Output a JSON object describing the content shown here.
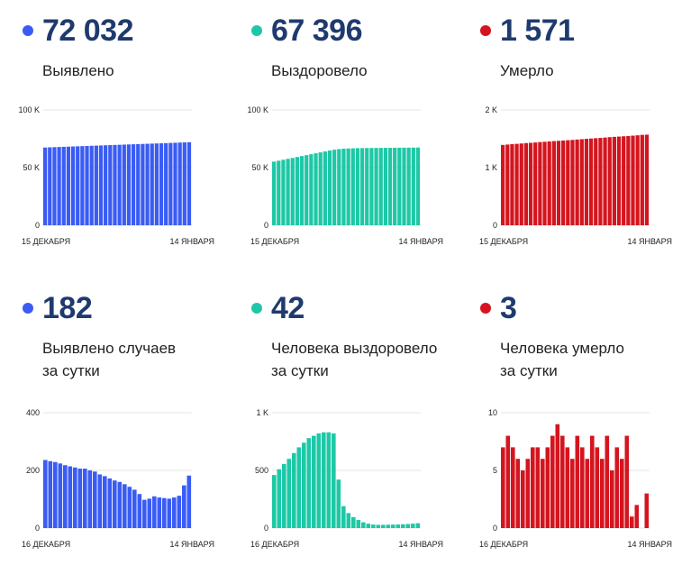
{
  "colors": {
    "blue": "#3a5cf4",
    "teal": "#1ec8a6",
    "red": "#d4151f"
  },
  "panels": [
    {
      "value": "72 032",
      "label_lines": [
        "Выявлено"
      ],
      "color": "blue"
    },
    {
      "value": "67 396",
      "label_lines": [
        "Выздоровело"
      ],
      "color": "teal"
    },
    {
      "value": "1 571",
      "label_lines": [
        "Умерло"
      ],
      "color": "red"
    },
    {
      "value": "182",
      "label_lines": [
        "Выявлено случаев",
        "за сутки"
      ],
      "color": "blue"
    },
    {
      "value": "42",
      "label_lines": [
        "Человека выздоровело",
        "за сутки"
      ],
      "color": "teal"
    },
    {
      "value": "3",
      "label_lines": [
        "Человека умерло",
        "за сутки"
      ],
      "color": "red"
    }
  ],
  "chart_data": [
    {
      "type": "bar",
      "color": "blue",
      "y_ticks": [
        "100 K",
        "50 K",
        "0"
      ],
      "ylim": [
        0,
        100000
      ],
      "x_start": "15 ДЕКАБРЯ",
      "x_end": "14 ЯНВАРЯ",
      "grid": true,
      "values": [
        67400,
        67570,
        67730,
        67880,
        68020,
        68170,
        68320,
        68470,
        68610,
        68760,
        68910,
        69060,
        69200,
        69350,
        69500,
        69650,
        69790,
        69940,
        70090,
        70240,
        70380,
        70520,
        70670,
        70800,
        70940,
        71090,
        71240,
        71400,
        71560,
        71720,
        71850,
        72032
      ]
    },
    {
      "type": "bar",
      "color": "teal",
      "y_ticks": [
        "100 K",
        "50 K",
        "0"
      ],
      "ylim": [
        0,
        100000
      ],
      "x_start": "15 ДЕКАБРЯ",
      "x_end": "14 ЯНВАРЯ",
      "grid": true,
      "values": [
        55200,
        56000,
        56800,
        57600,
        58400,
        59200,
        60000,
        60800,
        61600,
        62400,
        63200,
        64000,
        64800,
        65500,
        66000,
        66400,
        66600,
        66750,
        66850,
        66900,
        66950,
        67000,
        67050,
        67100,
        67130,
        67160,
        67200,
        67230,
        67270,
        67310,
        67354,
        67396
      ]
    },
    {
      "type": "bar",
      "color": "red",
      "y_ticks": [
        "2 K",
        "1 K",
        "0"
      ],
      "ylim": [
        0,
        2000
      ],
      "x_start": "15 ДЕКАБРЯ",
      "x_end": "14 ЯНВАРЯ",
      "grid": true,
      "values": [
        1393,
        1400,
        1407,
        1412,
        1418,
        1425,
        1430,
        1436,
        1443,
        1448,
        1454,
        1460,
        1465,
        1470,
        1475,
        1480,
        1487,
        1493,
        1499,
        1504,
        1510,
        1515,
        1521,
        1528,
        1533,
        1538,
        1543,
        1548,
        1554,
        1560,
        1568,
        1571
      ]
    },
    {
      "type": "bar",
      "color": "blue",
      "y_ticks": [
        "400",
        "200",
        "0"
      ],
      "ylim": [
        0,
        400
      ],
      "x_start": "16 ДЕКАБРЯ",
      "x_end": "14 ЯНВАРЯ",
      "grid": true,
      "values": [
        236,
        232,
        229,
        224,
        218,
        214,
        210,
        206,
        206,
        200,
        196,
        186,
        180,
        172,
        165,
        160,
        152,
        143,
        133,
        118,
        98,
        102,
        110,
        106,
        104,
        102,
        106,
        112,
        148,
        182
      ]
    },
    {
      "type": "bar",
      "color": "teal",
      "y_ticks": [
        "1 K",
        "500",
        "0"
      ],
      "ylim": [
        0,
        1000
      ],
      "x_start": "16 ДЕКАБРЯ",
      "x_end": "14 ЯНВАРЯ",
      "grid": true,
      "values": [
        460,
        510,
        555,
        600,
        650,
        700,
        740,
        780,
        800,
        820,
        830,
        830,
        820,
        420,
        190,
        130,
        95,
        70,
        50,
        38,
        30,
        28,
        28,
        29,
        30,
        31,
        33,
        35,
        38,
        42
      ]
    },
    {
      "type": "bar",
      "color": "red",
      "y_ticks": [
        "10",
        "5",
        "0"
      ],
      "ylim": [
        0,
        10
      ],
      "x_start": "16 ДЕКАБРЯ",
      "x_end": "14 ЯНВАРЯ",
      "grid": true,
      "values": [
        7,
        8,
        7,
        6,
        5,
        6,
        7,
        7,
        6,
        7,
        8,
        9,
        8,
        7,
        6,
        8,
        7,
        6,
        8,
        7,
        6,
        8,
        5,
        7,
        6,
        8,
        1,
        2,
        0,
        3
      ]
    }
  ]
}
